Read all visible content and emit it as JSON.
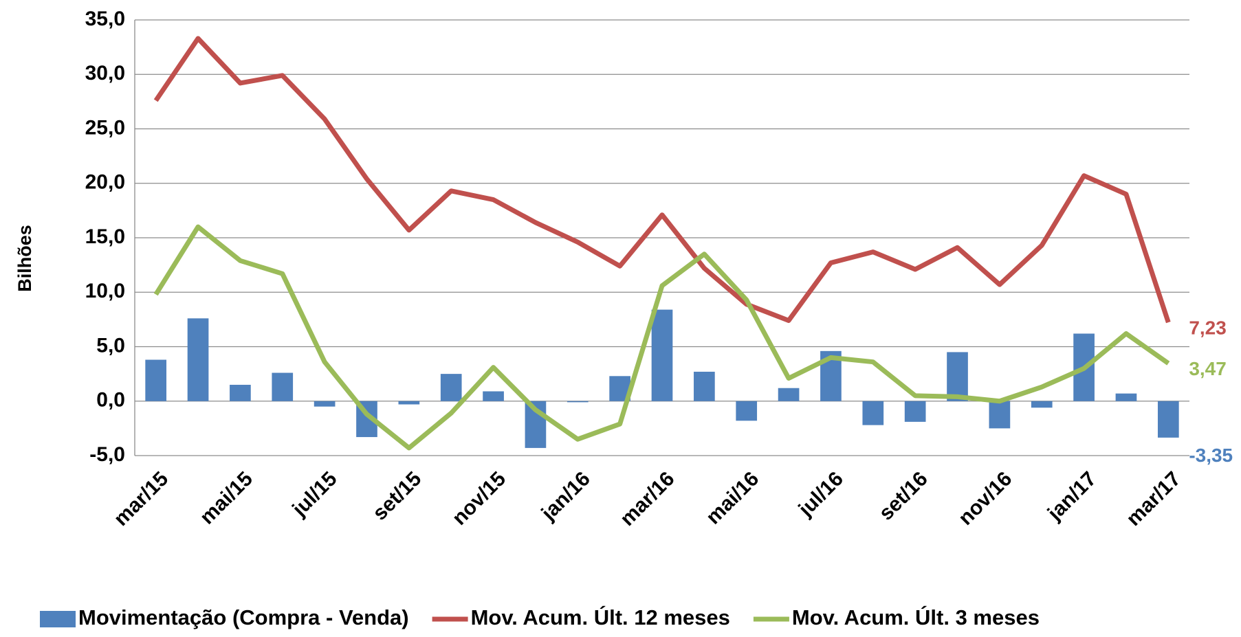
{
  "chart_data": {
    "type": "bar-line",
    "y_label": "Bilhões",
    "categories": [
      "mar/15",
      null,
      "mai/15",
      null,
      "jul/15",
      null,
      "set/15",
      null,
      "nov/15",
      null,
      "jan/16",
      null,
      "mar/16",
      null,
      "mai/16",
      null,
      "jul/16",
      null,
      "set/16",
      null,
      "nov/16",
      null,
      "jan/17",
      null,
      "mar/17"
    ],
    "ylim": [
      -5,
      35
    ],
    "yticks": [
      {
        "value": -5,
        "label": "-5,0"
      },
      {
        "value": 0,
        "label": "0,0"
      },
      {
        "value": 5,
        "label": "5,0"
      },
      {
        "value": 10,
        "label": "10,0"
      },
      {
        "value": 15,
        "label": "15,0"
      },
      {
        "value": 20,
        "label": "20,0"
      },
      {
        "value": 25,
        "label": "25,0"
      },
      {
        "value": 30,
        "label": "30,0"
      },
      {
        "value": 35,
        "label": "35,0"
      }
    ],
    "grid": true,
    "legend": "bottom",
    "series": [
      {
        "name": "Movimentação (Compra - Venda)",
        "type": "bar",
        "color": "#4f81bd",
        "values": [
          3.8,
          7.6,
          1.5,
          2.6,
          -0.5,
          -3.3,
          -0.3,
          2.5,
          0.9,
          -4.3,
          -0.1,
          2.3,
          8.4,
          2.7,
          -1.8,
          1.2,
          4.6,
          -2.2,
          -1.9,
          4.5,
          -2.5,
          -0.6,
          6.2,
          0.7,
          -3.35
        ],
        "value_labels": [
          null,
          null,
          null,
          null,
          null,
          null,
          null,
          null,
          null,
          null,
          null,
          null,
          null,
          null,
          null,
          null,
          null,
          null,
          null,
          null,
          null,
          null,
          null,
          null,
          "-3,35"
        ]
      },
      {
        "name": "Mov. Acum. Últ. 12 meses",
        "type": "line",
        "color": "#c0504d",
        "values": [
          27.6,
          33.3,
          29.2,
          29.9,
          25.9,
          20.4,
          15.7,
          19.3,
          18.5,
          16.4,
          14.6,
          12.4,
          17.1,
          12.2,
          8.9,
          7.4,
          12.7,
          13.7,
          12.1,
          14.1,
          10.7,
          14.3,
          20.7,
          19.0,
          7.23
        ],
        "value_labels": [
          null,
          null,
          null,
          null,
          null,
          null,
          null,
          null,
          null,
          null,
          null,
          null,
          null,
          null,
          null,
          null,
          null,
          null,
          null,
          null,
          null,
          null,
          null,
          null,
          "7,23"
        ]
      },
      {
        "name": "Mov. Acum. Últ. 3 meses",
        "type": "line",
        "color": "#9bbb59",
        "values": [
          9.8,
          16.0,
          12.9,
          11.7,
          3.6,
          -1.2,
          -4.3,
          -1.1,
          3.1,
          -0.8,
          -3.5,
          -2.1,
          10.6,
          13.5,
          9.3,
          2.1,
          4.0,
          3.6,
          0.5,
          0.4,
          0.0,
          1.3,
          3.0,
          6.2,
          3.47
        ],
        "value_labels": [
          null,
          null,
          null,
          null,
          null,
          null,
          null,
          null,
          null,
          null,
          null,
          null,
          null,
          null,
          null,
          null,
          null,
          null,
          null,
          null,
          null,
          null,
          null,
          null,
          "3,47"
        ]
      }
    ]
  }
}
